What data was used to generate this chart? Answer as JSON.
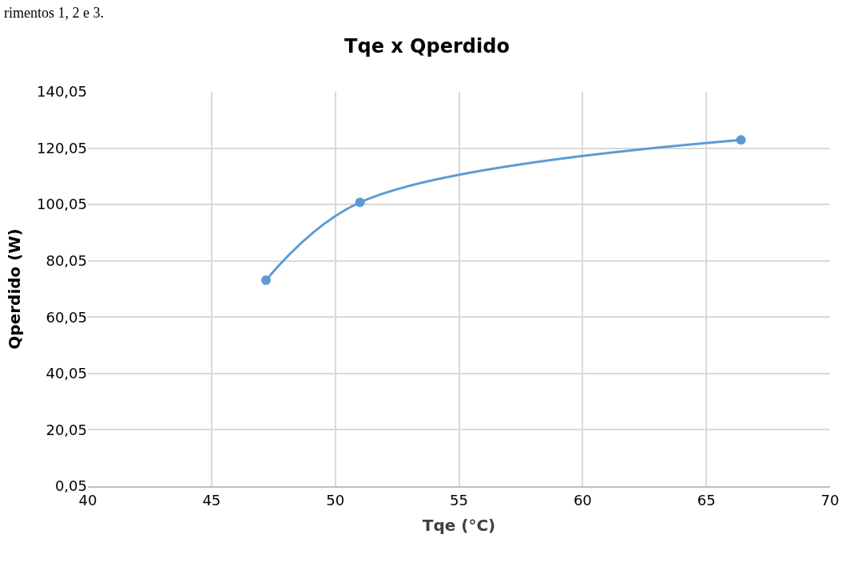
{
  "chart_data": {
    "type": "line",
    "title": "Tqe x Qperdido",
    "xlabel": "Tqe (°C)",
    "ylabel": "Qperdido (W)",
    "annotations": [
      "rimentos 1, 2 e 3."
    ],
    "x": [
      47.2,
      51.0,
      66.4
    ],
    "series": [
      {
        "color": "#5b9bd5",
        "values": [
          73.2,
          100.8,
          123.0
        ]
      }
    ],
    "xlim": [
      40,
      70
    ],
    "xticks": [
      40,
      45,
      50,
      55,
      60,
      65,
      70
    ],
    "ylim": [
      0.05,
      140.05
    ],
    "yticks": [
      {
        "value": 0.05,
        "label": "0,05"
      },
      {
        "value": 20.05,
        "label": "20,05"
      },
      {
        "value": 40.05,
        "label": "40,05"
      },
      {
        "value": 60.05,
        "label": "60,05"
      },
      {
        "value": 80.05,
        "label": "80,05"
      },
      {
        "value": 100.05,
        "label": "100,05"
      },
      {
        "value": 120.05,
        "label": "120,05"
      },
      {
        "value": 140.05,
        "label": "140,05"
      }
    ],
    "grid": true,
    "marker": "circle",
    "line_style": "solid"
  }
}
